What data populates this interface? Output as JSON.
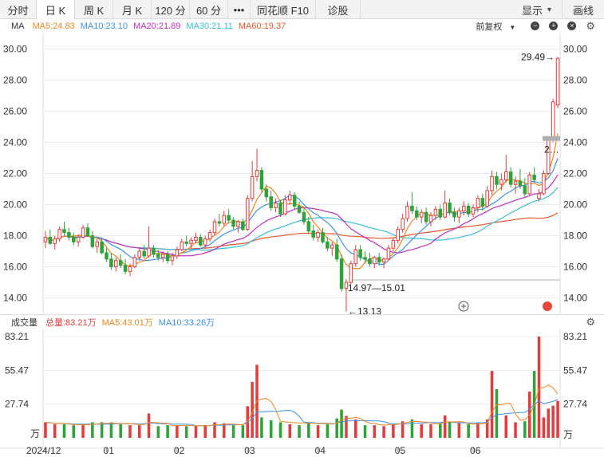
{
  "toolbar": {
    "items": [
      "分时",
      "日 K",
      "周 K",
      "月 K",
      "120 分",
      "60 分",
      "•••",
      "同花顺 F10",
      "诊股"
    ],
    "active_index": 1,
    "right_items": [
      "显示",
      "画线"
    ]
  },
  "main_legend": {
    "name": "MA",
    "items": [
      {
        "text": "MA5:24.83",
        "color": "#f0851f"
      },
      {
        "text": "MA10:23.10",
        "color": "#3b93e8"
      },
      {
        "text": "MA20:21.89",
        "color": "#c42dc4"
      },
      {
        "text": "MA30:21.11",
        "color": "#35c1d8"
      },
      {
        "text": "MA60:19.37",
        "color": "#e8572a"
      }
    ],
    "adjust_label": "前复权"
  },
  "main_chart": {
    "y_ticks": [
      "30.00",
      "28.00",
      "26.00",
      "24.00",
      "22.00",
      "20.00",
      "18.00",
      "16.00",
      "14.00"
    ],
    "annotations": {
      "high": "29.49→",
      "low": "←13.13",
      "range": "14.97—15.01",
      "last_price": "2…"
    }
  },
  "volume_legend": {
    "name": "成交量",
    "items": [
      {
        "text": "总量:83.21万",
        "color": "#e0403a"
      },
      {
        "text": "MA5:43.01万",
        "color": "#f0851f"
      },
      {
        "text": "MA10:33.26万",
        "color": "#3b93e8"
      }
    ]
  },
  "volume_chart": {
    "y_ticks": [
      "83.21",
      "55.47",
      "27.74"
    ],
    "unit": "万"
  },
  "x_axis": {
    "labels": [
      "2024/12",
      "01",
      "02",
      "03",
      "04",
      "05",
      "06"
    ]
  },
  "colors": {
    "up": "#e23d3d",
    "down": "#2fa33a",
    "grid": "#ececec"
  },
  "chart_data": {
    "type": "candlestick",
    "price_axis_ylim": [
      13.0,
      30.5
    ],
    "candles": [
      {
        "month": "2024/12",
        "o": 17.6,
        "h": 18.3,
        "l": 17.2,
        "c": 17.9
      },
      {
        "o": 17.9,
        "h": 18.4,
        "l": 17.4,
        "c": 17.5
      },
      {
        "o": 17.5,
        "h": 18.0,
        "l": 17.1,
        "c": 17.8
      },
      {
        "o": 17.8,
        "h": 18.6,
        "l": 17.6,
        "c": 18.4
      },
      {
        "o": 18.4,
        "h": 18.9,
        "l": 18.0,
        "c": 18.2
      },
      {
        "o": 18.2,
        "h": 18.5,
        "l": 17.7,
        "c": 17.9
      },
      {
        "o": 17.9,
        "h": 18.2,
        "l": 17.4,
        "c": 17.6
      },
      {
        "o": 17.6,
        "h": 18.1,
        "l": 17.3,
        "c": 17.9
      },
      {
        "o": 17.9,
        "h": 18.7,
        "l": 17.8,
        "c": 18.5
      },
      {
        "o": 18.5,
        "h": 18.8,
        "l": 17.9,
        "c": 18.0
      },
      {
        "o": 18.0,
        "h": 18.3,
        "l": 17.2,
        "c": 17.3
      },
      {
        "o": 17.3,
        "h": 17.8,
        "l": 16.9,
        "c": 17.6
      },
      {
        "o": 17.6,
        "h": 17.9,
        "l": 16.8,
        "c": 16.9
      },
      {
        "month": "01",
        "o": 16.9,
        "h": 17.2,
        "l": 16.3,
        "c": 16.5
      },
      {
        "o": 16.5,
        "h": 16.9,
        "l": 15.8,
        "c": 16.0
      },
      {
        "o": 16.0,
        "h": 16.6,
        "l": 15.7,
        "c": 16.4
      },
      {
        "o": 16.4,
        "h": 16.8,
        "l": 15.9,
        "c": 16.1
      },
      {
        "o": 16.1,
        "h": 16.5,
        "l": 15.5,
        "c": 15.7
      },
      {
        "o": 15.7,
        "h": 16.2,
        "l": 15.4,
        "c": 16.0
      },
      {
        "o": 16.0,
        "h": 16.8,
        "l": 15.9,
        "c": 16.6
      },
      {
        "o": 16.6,
        "h": 17.2,
        "l": 16.4,
        "c": 17.0
      },
      {
        "o": 17.0,
        "h": 17.4,
        "l": 16.5,
        "c": 16.7
      },
      {
        "o": 16.7,
        "h": 18.6,
        "l": 16.6,
        "c": 17.2
      },
      {
        "o": 17.2,
        "h": 17.4,
        "l": 16.6,
        "c": 16.8
      },
      {
        "o": 16.8,
        "h": 17.1,
        "l": 16.4,
        "c": 16.6
      },
      {
        "o": 16.6,
        "h": 17.0,
        "l": 16.3,
        "c": 16.8
      },
      {
        "o": 16.8,
        "h": 17.0,
        "l": 16.2,
        "c": 16.4
      },
      {
        "o": 16.4,
        "h": 16.9,
        "l": 16.1,
        "c": 16.7
      },
      {
        "month": "02",
        "o": 16.7,
        "h": 17.3,
        "l": 16.5,
        "c": 17.1
      },
      {
        "o": 17.1,
        "h": 17.8,
        "l": 17.0,
        "c": 17.6
      },
      {
        "o": 17.6,
        "h": 18.0,
        "l": 17.3,
        "c": 17.5
      },
      {
        "o": 17.5,
        "h": 17.9,
        "l": 17.2,
        "c": 17.7
      },
      {
        "o": 17.7,
        "h": 18.2,
        "l": 17.5,
        "c": 17.9
      },
      {
        "o": 17.9,
        "h": 18.1,
        "l": 17.3,
        "c": 17.4
      },
      {
        "o": 17.4,
        "h": 18.0,
        "l": 17.2,
        "c": 17.8
      },
      {
        "o": 17.8,
        "h": 18.4,
        "l": 17.6,
        "c": 18.2
      },
      {
        "o": 18.2,
        "h": 19.1,
        "l": 18.0,
        "c": 18.9
      },
      {
        "o": 18.9,
        "h": 19.4,
        "l": 18.6,
        "c": 18.8
      },
      {
        "o": 18.8,
        "h": 19.6,
        "l": 18.6,
        "c": 19.3
      },
      {
        "o": 19.3,
        "h": 19.7,
        "l": 18.8,
        "c": 19.0
      },
      {
        "o": 19.0,
        "h": 19.2,
        "l": 18.4,
        "c": 18.6
      },
      {
        "o": 18.6,
        "h": 19.0,
        "l": 18.2,
        "c": 18.9
      },
      {
        "o": 18.9,
        "h": 19.1,
        "l": 18.3,
        "c": 18.4
      },
      {
        "month": "03",
        "o": 18.4,
        "h": 20.6,
        "l": 18.3,
        "c": 20.4
      },
      {
        "o": 20.4,
        "h": 22.8,
        "l": 20.2,
        "c": 21.8
      },
      {
        "o": 21.8,
        "h": 23.6,
        "l": 21.5,
        "c": 22.2
      },
      {
        "o": 22.2,
        "h": 22.4,
        "l": 20.8,
        "c": 21.0
      },
      {
        "o": 21.0,
        "h": 21.3,
        "l": 20.2,
        "c": 20.5
      },
      {
        "o": 20.5,
        "h": 20.9,
        "l": 19.6,
        "c": 19.8
      },
      {
        "o": 19.8,
        "h": 20.4,
        "l": 19.5,
        "c": 20.1
      },
      {
        "o": 20.1,
        "h": 20.3,
        "l": 19.2,
        "c": 19.4
      },
      {
        "o": 19.4,
        "h": 20.6,
        "l": 19.3,
        "c": 20.3
      },
      {
        "o": 20.3,
        "h": 20.9,
        "l": 20.0,
        "c": 20.6
      },
      {
        "o": 20.6,
        "h": 20.8,
        "l": 19.7,
        "c": 19.9
      },
      {
        "o": 19.9,
        "h": 20.2,
        "l": 19.4,
        "c": 19.5
      },
      {
        "o": 19.5,
        "h": 19.8,
        "l": 18.7,
        "c": 18.9
      },
      {
        "o": 18.9,
        "h": 19.2,
        "l": 18.1,
        "c": 18.3
      },
      {
        "o": 18.3,
        "h": 18.7,
        "l": 17.7,
        "c": 17.9
      },
      {
        "month": "04",
        "o": 17.9,
        "h": 18.4,
        "l": 17.6,
        "c": 18.2
      },
      {
        "o": 18.2,
        "h": 18.5,
        "l": 17.5,
        "c": 17.6
      },
      {
        "o": 17.6,
        "h": 17.9,
        "l": 17.0,
        "c": 17.2
      },
      {
        "o": 17.2,
        "h": 17.6,
        "l": 16.7,
        "c": 17.4
      },
      {
        "o": 17.4,
        "h": 17.8,
        "l": 16.3,
        "c": 16.5
      },
      {
        "o": 16.5,
        "h": 16.8,
        "l": 14.4,
        "c": 14.6
      },
      {
        "o": 14.6,
        "h": 15.2,
        "l": 13.13,
        "c": 15.0
      },
      {
        "o": 15.0,
        "h": 16.4,
        "l": 14.9,
        "c": 16.2
      },
      {
        "o": 16.2,
        "h": 17.4,
        "l": 16.0,
        "c": 17.1
      },
      {
        "o": 17.1,
        "h": 17.4,
        "l": 16.4,
        "c": 16.6
      },
      {
        "o": 16.6,
        "h": 17.0,
        "l": 16.2,
        "c": 16.5
      },
      {
        "o": 16.5,
        "h": 16.9,
        "l": 16.0,
        "c": 16.2
      },
      {
        "o": 16.2,
        "h": 16.7,
        "l": 15.9,
        "c": 16.6
      },
      {
        "o": 16.6,
        "h": 16.9,
        "l": 16.1,
        "c": 16.3
      },
      {
        "o": 16.3,
        "h": 16.6,
        "l": 15.9,
        "c": 16.5
      },
      {
        "o": 16.5,
        "h": 17.4,
        "l": 16.4,
        "c": 17.2
      },
      {
        "o": 17.2,
        "h": 17.9,
        "l": 17.0,
        "c": 17.7
      },
      {
        "month": "05",
        "o": 17.7,
        "h": 18.6,
        "l": 17.5,
        "c": 18.4
      },
      {
        "o": 18.4,
        "h": 19.4,
        "l": 18.2,
        "c": 19.1
      },
      {
        "o": 19.1,
        "h": 20.2,
        "l": 18.9,
        "c": 19.9
      },
      {
        "o": 19.9,
        "h": 20.8,
        "l": 19.4,
        "c": 19.6
      },
      {
        "o": 19.6,
        "h": 19.9,
        "l": 19.0,
        "c": 19.2
      },
      {
        "o": 19.2,
        "h": 19.7,
        "l": 18.8,
        "c": 19.5
      },
      {
        "o": 19.5,
        "h": 19.8,
        "l": 18.7,
        "c": 18.9
      },
      {
        "o": 18.9,
        "h": 19.5,
        "l": 18.6,
        "c": 19.3
      },
      {
        "o": 19.3,
        "h": 19.9,
        "l": 19.0,
        "c": 19.7
      },
      {
        "o": 19.7,
        "h": 20.0,
        "l": 19.0,
        "c": 19.2
      },
      {
        "o": 19.2,
        "h": 20.9,
        "l": 19.1,
        "c": 20.1
      },
      {
        "o": 20.1,
        "h": 20.4,
        "l": 19.3,
        "c": 19.5
      },
      {
        "o": 19.5,
        "h": 19.8,
        "l": 18.9,
        "c": 19.2
      },
      {
        "o": 19.2,
        "h": 19.8,
        "l": 18.8,
        "c": 19.6
      },
      {
        "o": 19.6,
        "h": 20.2,
        "l": 19.3,
        "c": 19.9
      },
      {
        "o": 19.9,
        "h": 20.1,
        "l": 19.2,
        "c": 19.4
      },
      {
        "month": "06",
        "o": 19.4,
        "h": 20.0,
        "l": 19.2,
        "c": 19.8
      },
      {
        "o": 19.8,
        "h": 20.6,
        "l": 19.5,
        "c": 20.4
      },
      {
        "o": 20.4,
        "h": 20.7,
        "l": 19.6,
        "c": 19.9
      },
      {
        "o": 19.9,
        "h": 21.2,
        "l": 19.8,
        "c": 20.9
      },
      {
        "o": 20.9,
        "h": 22.2,
        "l": 20.6,
        "c": 21.8
      },
      {
        "o": 21.8,
        "h": 22.1,
        "l": 21.0,
        "c": 21.3
      },
      {
        "o": 21.3,
        "h": 22.0,
        "l": 20.9,
        "c": 21.6
      },
      {
        "o": 21.6,
        "h": 23.2,
        "l": 21.4,
        "c": 22.1
      },
      {
        "o": 22.1,
        "h": 22.4,
        "l": 21.1,
        "c": 21.3
      },
      {
        "o": 21.3,
        "h": 21.8,
        "l": 20.7,
        "c": 21.5
      },
      {
        "o": 21.5,
        "h": 22.3,
        "l": 21.0,
        "c": 21.2
      },
      {
        "o": 21.2,
        "h": 21.7,
        "l": 20.5,
        "c": 20.7
      },
      {
        "o": 20.7,
        "h": 22.1,
        "l": 20.6,
        "c": 21.9
      },
      {
        "o": 21.9,
        "h": 22.4,
        "l": 21.4,
        "c": 21.6
      },
      {
        "o": 20.4,
        "h": 21.0,
        "l": 20.2,
        "c": 20.7
      },
      {
        "o": 20.7,
        "h": 22.2,
        "l": 20.6,
        "c": 22.0
      },
      {
        "o": 22.0,
        "h": 24.4,
        "l": 21.9,
        "c": 24.2
      },
      {
        "o": 24.2,
        "h": 26.8,
        "l": 24.0,
        "c": 26.6
      },
      {
        "o": 26.4,
        "h": 29.49,
        "l": 26.2,
        "c": 29.4
      }
    ],
    "volume_ylim": [
      0,
      83.21
    ],
    "volume_unit": "万"
  }
}
